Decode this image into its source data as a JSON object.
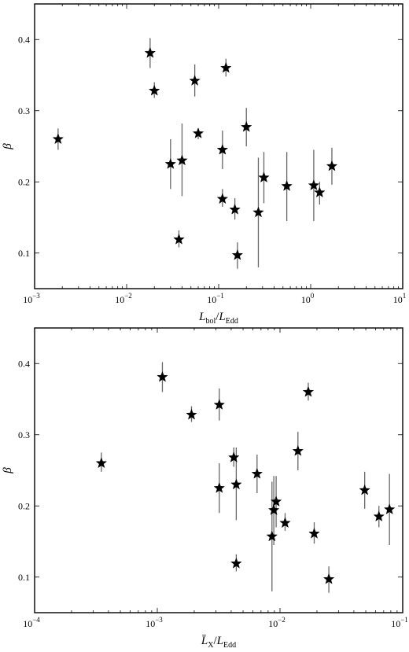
{
  "chart_data": [
    {
      "type": "scatter",
      "xscale": "log",
      "xlim": [
        0.001,
        10
      ],
      "ylim": [
        0.05,
        0.45
      ],
      "xticks": [
        {
          "value": 0.001,
          "base": "10",
          "exp": "−3"
        },
        {
          "value": 0.01,
          "base": "10",
          "exp": "−2"
        },
        {
          "value": 0.1,
          "base": "10",
          "exp": "−1"
        },
        {
          "value": 1,
          "base": "10",
          "exp": "0"
        },
        {
          "value": 10,
          "base": "10",
          "exp": "1"
        }
      ],
      "yticks": [
        0.1,
        0.2,
        0.3,
        0.4
      ],
      "xlabel": {
        "main1": "L",
        "sub1": "bol",
        "sep": "/",
        "main2": "L",
        "sub2": "Edd"
      },
      "ylabel": "β",
      "grid": false,
      "marker": "star",
      "points": [
        {
          "x": 0.0018,
          "y": 0.26,
          "ylo": 0.245,
          "yhi": 0.275
        },
        {
          "x": 0.018,
          "y": 0.381,
          "ylo": 0.36,
          "yhi": 0.402
        },
        {
          "x": 0.02,
          "y": 0.328,
          "ylo": 0.318,
          "yhi": 0.34
        },
        {
          "x": 0.03,
          "y": 0.225,
          "ylo": 0.19,
          "yhi": 0.26
        },
        {
          "x": 0.037,
          "y": 0.119,
          "ylo": 0.108,
          "yhi": 0.132
        },
        {
          "x": 0.04,
          "y": 0.23,
          "ylo": 0.18,
          "yhi": 0.282
        },
        {
          "x": 0.055,
          "y": 0.342,
          "ylo": 0.32,
          "yhi": 0.365
        },
        {
          "x": 0.06,
          "y": 0.268,
          "ylo": 0.26,
          "yhi": 0.275
        },
        {
          "x": 0.11,
          "y": 0.245,
          "ylo": 0.218,
          "yhi": 0.272
        },
        {
          "x": 0.11,
          "y": 0.176,
          "ylo": 0.165,
          "yhi": 0.19
        },
        {
          "x": 0.12,
          "y": 0.36,
          "ylo": 0.348,
          "yhi": 0.373
        },
        {
          "x": 0.15,
          "y": 0.161,
          "ylo": 0.147,
          "yhi": 0.177
        },
        {
          "x": 0.16,
          "y": 0.097,
          "ylo": 0.078,
          "yhi": 0.115
        },
        {
          "x": 0.2,
          "y": 0.277,
          "ylo": 0.25,
          "yhi": 0.304
        },
        {
          "x": 0.27,
          "y": 0.157,
          "ylo": 0.08,
          "yhi": 0.234
        },
        {
          "x": 0.31,
          "y": 0.206,
          "ylo": 0.17,
          "yhi": 0.242
        },
        {
          "x": 0.55,
          "y": 0.194,
          "ylo": 0.145,
          "yhi": 0.242
        },
        {
          "x": 1.08,
          "y": 0.195,
          "ylo": 0.145,
          "yhi": 0.245
        },
        {
          "x": 1.25,
          "y": 0.185,
          "ylo": 0.168,
          "yhi": 0.2
        },
        {
          "x": 1.7,
          "y": 0.222,
          "ylo": 0.196,
          "yhi": 0.248
        }
      ]
    },
    {
      "type": "scatter",
      "xscale": "log",
      "xlim": [
        0.0001,
        0.1
      ],
      "ylim": [
        0.05,
        0.45
      ],
      "xticks": [
        {
          "value": 0.0001,
          "base": "10",
          "exp": "−4"
        },
        {
          "value": 0.001,
          "base": "10",
          "exp": "−3"
        },
        {
          "value": 0.01,
          "base": "10",
          "exp": "−2"
        },
        {
          "value": 0.1,
          "base": "10",
          "exp": "−1"
        }
      ],
      "yticks": [
        0.1,
        0.2,
        0.3,
        0.4
      ],
      "xlabel": {
        "main1": "L̄",
        "sub1": "X",
        "sep": "/",
        "main2": "L",
        "sub2": "Edd"
      },
      "ylabel": "β",
      "grid": false,
      "marker": "star",
      "points": [
        {
          "x": 0.00035,
          "y": 0.26,
          "ylo": 0.248,
          "yhi": 0.275
        },
        {
          "x": 0.0011,
          "y": 0.381,
          "ylo": 0.36,
          "yhi": 0.402
        },
        {
          "x": 0.0019,
          "y": 0.328,
          "ylo": 0.318,
          "yhi": 0.34
        },
        {
          "x": 0.0032,
          "y": 0.342,
          "ylo": 0.32,
          "yhi": 0.365
        },
        {
          "x": 0.0032,
          "y": 0.225,
          "ylo": 0.19,
          "yhi": 0.26
        },
        {
          "x": 0.0042,
          "y": 0.268,
          "ylo": 0.255,
          "yhi": 0.282
        },
        {
          "x": 0.0044,
          "y": 0.23,
          "ylo": 0.18,
          "yhi": 0.282
        },
        {
          "x": 0.0044,
          "y": 0.119,
          "ylo": 0.108,
          "yhi": 0.132
        },
        {
          "x": 0.0065,
          "y": 0.245,
          "ylo": 0.218,
          "yhi": 0.272
        },
        {
          "x": 0.0086,
          "y": 0.157,
          "ylo": 0.08,
          "yhi": 0.234
        },
        {
          "x": 0.0089,
          "y": 0.194,
          "ylo": 0.145,
          "yhi": 0.242
        },
        {
          "x": 0.0093,
          "y": 0.206,
          "ylo": 0.17,
          "yhi": 0.242
        },
        {
          "x": 0.011,
          "y": 0.176,
          "ylo": 0.165,
          "yhi": 0.19
        },
        {
          "x": 0.014,
          "y": 0.277,
          "ylo": 0.25,
          "yhi": 0.304
        },
        {
          "x": 0.017,
          "y": 0.36,
          "ylo": 0.348,
          "yhi": 0.373
        },
        {
          "x": 0.019,
          "y": 0.161,
          "ylo": 0.147,
          "yhi": 0.177
        },
        {
          "x": 0.025,
          "y": 0.097,
          "ylo": 0.078,
          "yhi": 0.115
        },
        {
          "x": 0.049,
          "y": 0.222,
          "ylo": 0.196,
          "yhi": 0.248
        },
        {
          "x": 0.064,
          "y": 0.185,
          "ylo": 0.17,
          "yhi": 0.2
        },
        {
          "x": 0.078,
          "y": 0.195,
          "ylo": 0.145,
          "yhi": 0.245
        }
      ]
    }
  ]
}
